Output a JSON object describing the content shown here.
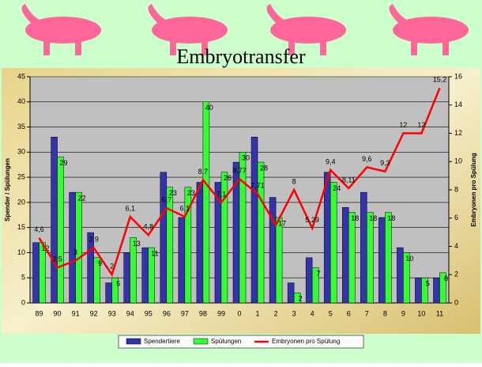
{
  "chart_data": {
    "type": "bar-line",
    "title": "Embryotransfer",
    "y_label": "Spender / Spülungen",
    "y2_label": "Embryonen pro Spülung",
    "categories": [
      "89",
      "90",
      "91",
      "92",
      "93",
      "94",
      "95",
      "96",
      "97",
      "98",
      "99",
      "0",
      "1",
      "2",
      "3",
      "4",
      "5",
      "6",
      "7",
      "8",
      "9",
      "10",
      "11"
    ],
    "series": [
      {
        "name": "Spendertiere",
        "color": "#3333aa",
        "type": "bar",
        "values": [
          12,
          33,
          22,
          14,
          4,
          10,
          11,
          26,
          17,
          24,
          24,
          28,
          33,
          21,
          4,
          9,
          26,
          19,
          22,
          17,
          11,
          5,
          5
        ]
      },
      {
        "name": "Spülungen",
        "color": "#33ff33",
        "type": "bar",
        "show_labels": true,
        "values": [
          12,
          29,
          22,
          9,
          5,
          13,
          11,
          23,
          23,
          40,
          26,
          30,
          28,
          17,
          2,
          7,
          24,
          18,
          18,
          18,
          10,
          5,
          6
        ]
      },
      {
        "name": "Embryonen pro Spülung",
        "color": "#ff0000",
        "type": "line",
        "axis": "y2",
        "values": [
          4.6,
          2.5,
          3,
          3.9,
          2,
          6.1,
          4.8,
          6.7,
          6.1,
          8.7,
          7.1,
          8.77,
          7.71,
          5.5,
          8,
          5.29,
          9.4,
          8.11,
          9.6,
          9.3,
          12,
          12,
          15.2
        ],
        "value_labels": [
          "4,6",
          "2,5",
          "3",
          "3,9",
          "2",
          "6,1",
          "4,8",
          "6,7",
          "6,1",
          "8,7",
          "7,1",
          "8,77",
          "7,71",
          null,
          "8",
          "5,29",
          "9,4",
          "8,11",
          "9,6",
          "9,3",
          "12",
          "12",
          "15,2"
        ]
      }
    ],
    "ylim": [
      0,
      45
    ],
    "yticks": [
      0,
      5,
      10,
      15,
      20,
      25,
      30,
      35,
      40,
      45
    ],
    "y2lim": [
      0,
      16
    ],
    "y2ticks": [
      0,
      2,
      4,
      6,
      8,
      10,
      12,
      14,
      16
    ],
    "legend": "bottom"
  }
}
